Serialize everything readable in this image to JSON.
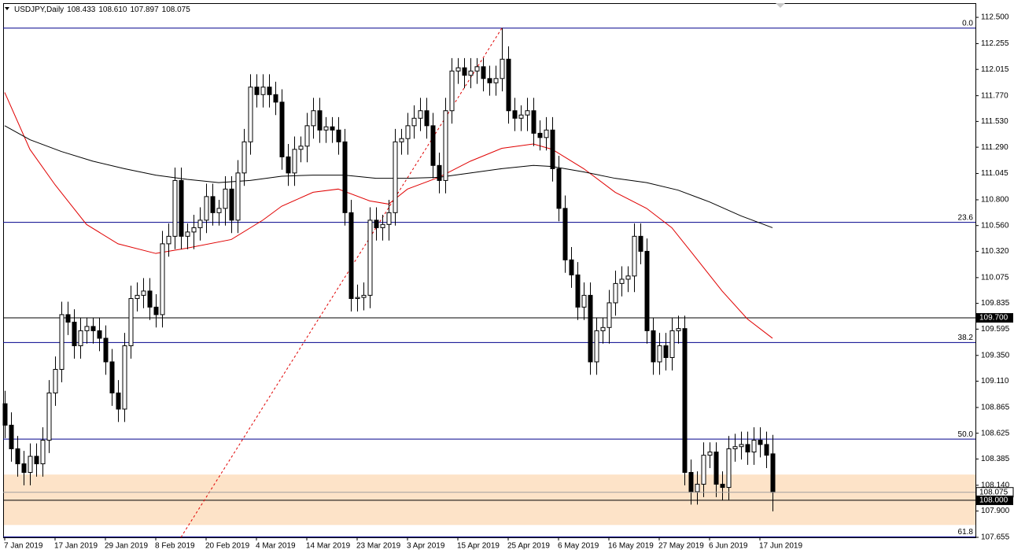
{
  "chart_data": {
    "type": "candlestick",
    "header": {
      "symbol": "USDJPY,Daily",
      "values": [
        "108.433",
        "108.610",
        "107.897",
        "108.075"
      ]
    },
    "categories": [
      "7 Jan 2019",
      null,
      null,
      null,
      null,
      null,
      null,
      null,
      "17 Jan 2019",
      null,
      null,
      null,
      null,
      null,
      null,
      null,
      "29 Jan 2019",
      null,
      null,
      null,
      null,
      null,
      null,
      null,
      "8 Feb 2019",
      null,
      null,
      null,
      null,
      null,
      null,
      null,
      "20 Feb 2019",
      null,
      null,
      null,
      null,
      null,
      null,
      null,
      "4 Mar 2019",
      null,
      null,
      null,
      null,
      null,
      null,
      null,
      "14 Mar 2019",
      null,
      null,
      null,
      null,
      null,
      null,
      null,
      "23 Mar 2019",
      null,
      null,
      null,
      null,
      null,
      null,
      null,
      "3 Apr 2019",
      null,
      null,
      null,
      null,
      null,
      null,
      null,
      "15 Apr 2019",
      null,
      null,
      null,
      null,
      null,
      null,
      null,
      "25 Apr 2019",
      null,
      null,
      null,
      null,
      null,
      null,
      null,
      "6 May 2019",
      null,
      null,
      null,
      null,
      null,
      null,
      null,
      "16 May 2019",
      null,
      null,
      null,
      null,
      null,
      null,
      null,
      "27 May 2019",
      null,
      null,
      null,
      null,
      null,
      null,
      null,
      "6 Jun 2019",
      null,
      null,
      null,
      null,
      null,
      null,
      null,
      "17 Jun 2019",
      null,
      null
    ],
    "ohlc": [
      [
        108.9,
        109.02,
        108.58,
        108.7
      ],
      [
        108.7,
        108.82,
        108.36,
        108.48
      ],
      [
        108.48,
        108.6,
        108.22,
        108.34
      ],
      [
        108.34,
        108.46,
        108.14,
        108.26
      ],
      [
        108.26,
        108.53,
        108.14,
        108.41
      ],
      [
        108.41,
        108.53,
        108.22,
        108.34
      ],
      [
        108.34,
        108.68,
        108.22,
        108.56
      ],
      [
        108.56,
        109.12,
        108.44,
        109.0
      ],
      [
        109.0,
        109.34,
        108.88,
        109.22
      ],
      [
        109.22,
        109.85,
        109.1,
        109.73
      ],
      [
        109.73,
        109.85,
        109.54,
        109.66
      ],
      [
        109.66,
        109.78,
        109.32,
        109.44
      ],
      [
        109.44,
        109.7,
        109.32,
        109.58
      ],
      [
        109.58,
        109.7,
        109.46,
        109.62
      ],
      [
        109.62,
        109.7,
        109.46,
        109.58
      ],
      [
        109.58,
        109.7,
        109.39,
        109.51
      ],
      [
        109.51,
        109.63,
        109.17,
        109.29
      ],
      [
        109.29,
        109.41,
        108.88,
        109.0
      ],
      [
        109.0,
        109.12,
        108.73,
        108.85
      ],
      [
        108.85,
        109.56,
        108.73,
        109.44
      ],
      [
        109.44,
        110.0,
        109.32,
        109.88
      ],
      [
        109.88,
        110.03,
        109.76,
        109.91
      ],
      [
        109.91,
        110.07,
        109.79,
        109.95
      ],
      [
        109.95,
        110.07,
        109.68,
        109.8
      ],
      [
        109.8,
        109.92,
        109.61,
        109.73
      ],
      [
        109.73,
        110.51,
        109.61,
        110.39
      ],
      [
        110.39,
        110.58,
        110.27,
        110.46
      ],
      [
        110.46,
        111.1,
        110.34,
        110.98
      ],
      [
        110.98,
        111.1,
        110.34,
        110.46
      ],
      [
        110.46,
        110.58,
        110.34,
        110.5
      ],
      [
        110.5,
        110.66,
        110.34,
        110.54
      ],
      [
        110.54,
        110.73,
        110.42,
        110.61
      ],
      [
        110.61,
        110.95,
        110.49,
        110.83
      ],
      [
        110.83,
        110.95,
        110.56,
        110.68
      ],
      [
        110.68,
        110.8,
        110.56,
        110.72
      ],
      [
        110.72,
        111.02,
        110.56,
        110.9
      ],
      [
        110.9,
        111.02,
        110.49,
        110.61
      ],
      [
        110.61,
        111.17,
        110.49,
        111.05
      ],
      [
        111.05,
        111.46,
        110.93,
        111.34
      ],
      [
        111.34,
        111.97,
        111.22,
        111.85
      ],
      [
        111.85,
        111.97,
        111.66,
        111.78
      ],
      [
        111.78,
        111.97,
        111.66,
        111.85
      ],
      [
        111.85,
        111.97,
        111.66,
        111.78
      ],
      [
        111.78,
        111.9,
        111.59,
        111.71
      ],
      [
        111.71,
        111.83,
        111.08,
        111.2
      ],
      [
        111.2,
        111.32,
        110.93,
        111.05
      ],
      [
        111.05,
        111.39,
        110.93,
        111.27
      ],
      [
        111.27,
        111.39,
        111.15,
        111.3
      ],
      [
        111.3,
        111.61,
        111.15,
        111.49
      ],
      [
        111.49,
        111.75,
        111.37,
        111.63
      ],
      [
        111.63,
        111.75,
        111.33,
        111.45
      ],
      [
        111.45,
        111.57,
        111.33,
        111.48
      ],
      [
        111.48,
        111.57,
        111.33,
        111.45
      ],
      [
        111.45,
        111.57,
        111.22,
        111.34
      ],
      [
        111.34,
        111.46,
        110.56,
        110.68
      ],
      [
        110.68,
        110.8,
        109.76,
        109.88
      ],
      [
        109.88,
        110.01,
        109.76,
        109.89
      ],
      [
        109.89,
        110.03,
        109.77,
        109.91
      ],
      [
        109.91,
        110.73,
        109.79,
        110.61
      ],
      [
        110.61,
        110.73,
        110.42,
        110.54
      ],
      [
        110.54,
        110.66,
        110.42,
        110.57
      ],
      [
        110.57,
        110.8,
        110.42,
        110.68
      ],
      [
        110.68,
        111.46,
        110.56,
        111.34
      ],
      [
        111.34,
        111.46,
        111.22,
        111.37
      ],
      [
        111.37,
        111.61,
        111.22,
        111.49
      ],
      [
        111.49,
        111.68,
        111.37,
        111.56
      ],
      [
        111.56,
        111.75,
        111.44,
        111.63
      ],
      [
        111.63,
        111.75,
        111.37,
        111.49
      ],
      [
        111.49,
        111.61,
        111.0,
        111.12
      ],
      [
        111.12,
        111.24,
        110.86,
        110.98
      ],
      [
        110.98,
        111.75,
        110.86,
        111.63
      ],
      [
        111.63,
        112.12,
        111.51,
        112.0
      ],
      [
        112.0,
        112.12,
        111.88,
        112.03
      ],
      [
        112.03,
        112.12,
        111.84,
        111.96
      ],
      [
        111.96,
        112.12,
        111.84,
        112.0
      ],
      [
        112.0,
        112.12,
        111.88,
        112.04
      ],
      [
        112.04,
        112.12,
        111.81,
        111.93
      ],
      [
        111.93,
        112.05,
        111.77,
        111.89
      ],
      [
        111.89,
        112.05,
        111.77,
        111.93
      ],
      [
        111.93,
        112.4,
        111.81,
        112.11
      ],
      [
        112.11,
        112.23,
        111.51,
        111.63
      ],
      [
        111.63,
        111.75,
        111.44,
        111.56
      ],
      [
        111.56,
        111.68,
        111.44,
        111.59
      ],
      [
        111.59,
        111.75,
        111.44,
        111.63
      ],
      [
        111.63,
        111.75,
        111.3,
        111.42
      ],
      [
        111.42,
        111.54,
        111.26,
        111.38
      ],
      [
        111.38,
        111.57,
        111.26,
        111.45
      ],
      [
        111.45,
        111.57,
        110.97,
        111.09
      ],
      [
        111.09,
        111.21,
        110.6,
        110.72
      ],
      [
        110.72,
        110.84,
        110.12,
        110.24
      ],
      [
        110.24,
        110.36,
        109.98,
        110.1
      ],
      [
        110.1,
        110.22,
        109.68,
        109.8
      ],
      [
        109.8,
        110.03,
        109.68,
        109.91
      ],
      [
        109.91,
        110.03,
        109.17,
        109.29
      ],
      [
        109.29,
        109.7,
        109.17,
        109.58
      ],
      [
        109.58,
        109.7,
        109.46,
        109.61
      ],
      [
        109.61,
        109.96,
        109.46,
        109.84
      ],
      [
        109.84,
        110.14,
        109.72,
        110.02
      ],
      [
        110.02,
        110.18,
        109.9,
        110.06
      ],
      [
        110.06,
        110.18,
        109.94,
        110.09
      ],
      [
        110.09,
        110.58,
        109.94,
        110.46
      ],
      [
        110.46,
        110.58,
        110.2,
        110.32
      ],
      [
        110.32,
        110.44,
        109.46,
        109.58
      ],
      [
        109.58,
        109.7,
        109.17,
        109.29
      ],
      [
        109.29,
        109.56,
        109.17,
        109.44
      ],
      [
        109.44,
        109.56,
        109.21,
        109.33
      ],
      [
        109.33,
        109.7,
        109.21,
        109.58
      ],
      [
        109.58,
        109.72,
        109.46,
        109.6
      ],
      [
        109.6,
        109.72,
        108.14,
        108.26
      ],
      [
        108.26,
        108.38,
        107.96,
        108.08
      ],
      [
        108.08,
        108.27,
        107.96,
        108.15
      ],
      [
        108.15,
        108.54,
        108.03,
        108.42
      ],
      [
        108.42,
        108.54,
        108.3,
        108.45
      ],
      [
        108.45,
        108.54,
        108.03,
        108.15
      ],
      [
        108.15,
        108.27,
        108.0,
        108.12
      ],
      [
        108.12,
        108.6,
        108.0,
        108.48
      ],
      [
        108.48,
        108.62,
        108.36,
        108.5
      ],
      [
        108.5,
        108.64,
        108.38,
        108.52
      ],
      [
        108.52,
        108.64,
        108.33,
        108.45
      ],
      [
        108.45,
        108.68,
        108.33,
        108.56
      ],
      [
        108.56,
        108.68,
        108.4,
        108.52
      ],
      [
        108.52,
        108.64,
        108.3,
        108.42
      ],
      [
        108.433,
        108.61,
        107.897,
        108.075
      ]
    ],
    "up_color": "#ffffff",
    "down_color": "#000000",
    "lines": [
      {
        "color": "#e00000",
        "x": [
          0,
          4,
          8,
          13,
          18,
          24,
          29,
          36,
          41,
          44,
          49,
          53,
          58,
          61,
          64,
          69,
          74,
          79,
          84,
          87,
          92,
          97,
          102,
          106,
          109,
          114,
          118,
          122
        ],
        "y": [
          111.8,
          111.27,
          110.94,
          110.57,
          110.39,
          110.3,
          110.35,
          110.43,
          110.61,
          110.74,
          110.87,
          110.9,
          110.79,
          110.76,
          110.9,
          111.01,
          111.16,
          111.28,
          111.32,
          111.27,
          111.09,
          110.87,
          110.72,
          110.54,
          110.32,
          109.95,
          109.69,
          109.51
        ]
      },
      {
        "color": "#000000",
        "x": [
          0,
          4,
          9,
          14,
          19,
          24,
          29,
          34,
          39,
          44,
          49,
          54,
          59,
          64,
          69,
          74,
          79,
          84,
          87,
          92,
          97,
          102,
          107,
          112,
          117,
          122
        ],
        "y": [
          111.49,
          111.36,
          111.25,
          111.16,
          111.09,
          111.03,
          110.99,
          110.96,
          110.98,
          111.02,
          111.03,
          111.03,
          111.0,
          111.0,
          111.01,
          111.05,
          111.09,
          111.12,
          111.11,
          111.06,
          111.0,
          110.96,
          110.89,
          110.78,
          110.65,
          110.54
        ]
      }
    ],
    "trendline": {
      "color": "#e00000",
      "x": [
        28,
        79
      ],
      "y": [
        107.655,
        112.4
      ]
    },
    "zone": [
      107.77,
      108.24
    ],
    "zone_color": "#fde3c8",
    "fib_color": "#00008b",
    "fib_levels": [
      {
        "label": "0.0",
        "value": 112.4
      },
      {
        "label": "23.6",
        "value": 110.59
      },
      {
        "label": "38.2",
        "value": 109.47
      },
      {
        "label": "50.0",
        "value": 108.57
      },
      {
        "label": "61.8",
        "value": 107.66
      }
    ],
    "hlines": [
      {
        "value": 109.7,
        "label": "109.700"
      },
      {
        "value": 108.0,
        "label": "108.000"
      }
    ],
    "price_line_color": "#a0a0a0",
    "ylim": [
      107.655,
      112.625
    ],
    "yticks": [
      {
        "value": 112.5,
        "label": "112.500"
      },
      112.255,
      112.015,
      {
        "value": 111.77,
        "label": "111.770"
      },
      {
        "value": 111.53,
        "label": "111.530"
      },
      {
        "value": 111.29,
        "label": "111.290"
      },
      111.045,
      {
        "value": 110.8,
        "label": "110.800"
      },
      {
        "value": 110.56,
        "label": "110.560"
      },
      {
        "value": 110.32,
        "label": "110.320"
      },
      110.075,
      109.835,
      109.595,
      {
        "value": 109.35,
        "label": "109.350"
      },
      {
        "value": 109.11,
        "label": "109.110"
      },
      108.865,
      108.625,
      108.385,
      {
        "value": 108.14,
        "label": "108.140"
      },
      {
        "value": 107.9,
        "label": "107.900"
      },
      107.655
    ]
  }
}
